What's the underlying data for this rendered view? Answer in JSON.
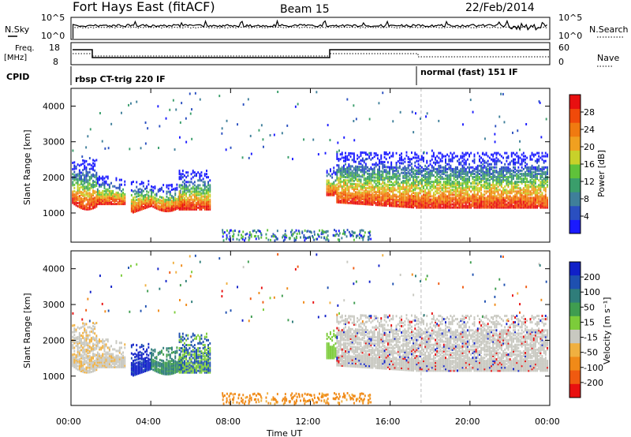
{
  "header": {
    "station": "Fort Hays East (fitACF)",
    "beam": "Beam 15",
    "date": "22/Feb/2014"
  },
  "strips": {
    "nsky_label": "N.Sky",
    "nsearch_label": "N.Search",
    "freq_label_1": "Freq.",
    "freq_label_2": "[MHz]",
    "nave_label": "Nave",
    "cpid_label": "CPID",
    "n_ticks_left": [
      "10^5",
      "10^0"
    ],
    "n_ticks_right": [
      "10^5",
      "10^0"
    ],
    "freq_ticks": [
      "18",
      "8"
    ],
    "nave_ticks": [
      "60",
      "0"
    ],
    "cpid_segments": [
      {
        "label": "rbsp CT-trig 220 IF",
        "start_h": 0.0
      },
      {
        "label": "normal (fast) 151 IF",
        "start_h": 17.55
      }
    ]
  },
  "chart_data": [
    {
      "type": "heatmap",
      "name": "power",
      "ylabel": "Slant Range [km]",
      "xlabel": "",
      "x_ticks": [
        "00:00",
        "04:00",
        "08:00",
        "12:00",
        "16:00",
        "20:00",
        "00:00"
      ],
      "y_ticks": [
        "1000",
        "2000",
        "3000",
        "4000"
      ],
      "xlim_hours": [
        0,
        24
      ],
      "ylim_km": [
        180,
        4500
      ],
      "colorbar": {
        "label": "Power [dB]",
        "ticks": [
          "4",
          "8",
          "12",
          "16",
          "20",
          "24",
          "28"
        ],
        "range": [
          0,
          30
        ],
        "colors": [
          "#1a1aff",
          "#2a4fc0",
          "#3f7f9a",
          "#3a9e6b",
          "#5fc23a",
          "#c8d12a",
          "#f0a020",
          "#f07a10",
          "#f04a0a",
          "#e81010"
        ]
      }
    },
    {
      "type": "heatmap",
      "name": "velocity",
      "ylabel": "Slant Range [km]",
      "xlabel": "Time UT",
      "x_ticks": [
        "00:00",
        "04:00",
        "08:00",
        "12:00",
        "16:00",
        "20:00",
        "00:00"
      ],
      "y_ticks": [
        "1000",
        "2000",
        "3000",
        "4000"
      ],
      "xlim_hours": [
        0,
        24
      ],
      "ylim_km": [
        180,
        4500
      ],
      "colorbar": {
        "label": "Velocity [m s⁻¹]",
        "ticks": [
          "200",
          "100",
          "50",
          "15",
          "-15",
          "-50",
          "-100",
          "-200"
        ],
        "colors": [
          "#1020c8",
          "#1e50b0",
          "#2f7d7a",
          "#3f9d50",
          "#7ccc3a",
          "#c8c8c0",
          "#f0b040",
          "#f08a18",
          "#f05a10",
          "#e81010"
        ]
      }
    }
  ]
}
